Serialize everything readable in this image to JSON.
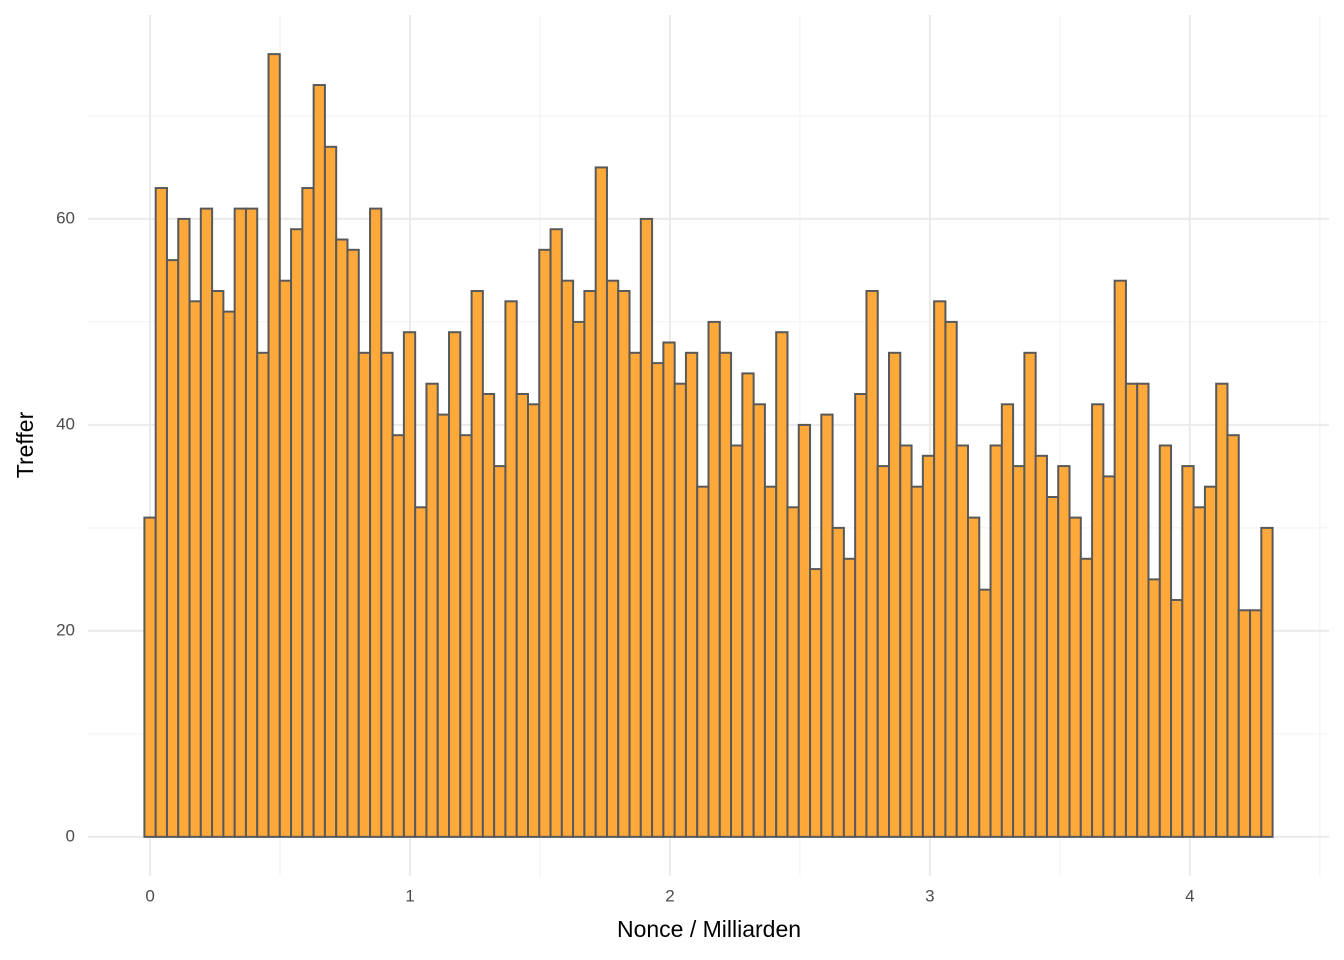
{
  "chart_data": {
    "type": "histogram",
    "x_label": "Nonce / Milliarden",
    "y_label": "Treffer",
    "bins": [
      -0.0217,
      0.0217,
      0.0651,
      0.1085,
      0.1519,
      0.1953,
      0.2387,
      0.2821,
      0.3255,
      0.3689,
      0.4123,
      0.4557,
      0.4991,
      0.5425,
      0.5859,
      0.6293,
      0.6727,
      0.7161,
      0.7595,
      0.8029,
      0.8463,
      0.8897,
      0.9331,
      0.9765,
      1.0199,
      1.0633,
      1.1067,
      1.1501,
      1.1935,
      1.2369,
      1.2803,
      1.3237,
      1.3671,
      1.4105,
      1.4539,
      1.4973,
      1.5407,
      1.5841,
      1.6275,
      1.6709,
      1.7143,
      1.7577,
      1.8011,
      1.8445,
      1.8879,
      1.9313,
      1.9747,
      2.0181,
      2.0615,
      2.1049,
      2.1483,
      2.1917,
      2.2351,
      2.2785,
      2.3219,
      2.3653,
      2.4087,
      2.4521,
      2.4955,
      2.5389,
      2.5823,
      2.6257,
      2.6691,
      2.7125,
      2.7559,
      2.7993,
      2.8427,
      2.8861,
      2.9295,
      2.9729,
      3.0163,
      3.0597,
      3.1031,
      3.1465,
      3.1899,
      3.2333,
      3.2767,
      3.3201,
      3.3635,
      3.4069,
      3.4503,
      3.4937,
      3.5371,
      3.5805,
      3.6239,
      3.6673,
      3.7107,
      3.7541,
      3.7975,
      3.8409,
      3.8843,
      3.9277,
      3.9711,
      4.0145,
      4.0579,
      4.1013,
      4.1447,
      4.1881,
      4.2315,
      4.2749,
      4.3183
    ],
    "counts": [
      31,
      63,
      56,
      60,
      52,
      61,
      53,
      51,
      61,
      61,
      47,
      76,
      54,
      59,
      63,
      73,
      67,
      58,
      57,
      47,
      61,
      47,
      39,
      49,
      32,
      44,
      41,
      49,
      39,
      53,
      43,
      36,
      52,
      43,
      42,
      57,
      59,
      54,
      50,
      53,
      65,
      54,
      53,
      47,
      60,
      46,
      48,
      44,
      47,
      34,
      50,
      47,
      38,
      45,
      42,
      34,
      49,
      32,
      40,
      26,
      41,
      30,
      27,
      43,
      53,
      36,
      47,
      38,
      34,
      37,
      52,
      50,
      38,
      31,
      24,
      38,
      42,
      36,
      47,
      37,
      33,
      36,
      31,
      27,
      42,
      35,
      54,
      44,
      44,
      25,
      38,
      23,
      36,
      32,
      34,
      44,
      39,
      22,
      22,
      30
    ],
    "color": "#ffa93a",
    "edge_color": "#595959",
    "xlim": [
      -0.2387,
      4.5353
    ],
    "ylim": [
      -3.8,
      79.8
    ],
    "xticks": [
      0,
      1,
      2,
      3,
      4
    ],
    "yticks": [
      0,
      20,
      40,
      60
    ],
    "x_minor_grid": [
      0.5,
      1.5,
      2.5,
      3.5,
      4.5
    ],
    "y_minor_grid": [
      10,
      30,
      50,
      70
    ],
    "grid": true
  }
}
